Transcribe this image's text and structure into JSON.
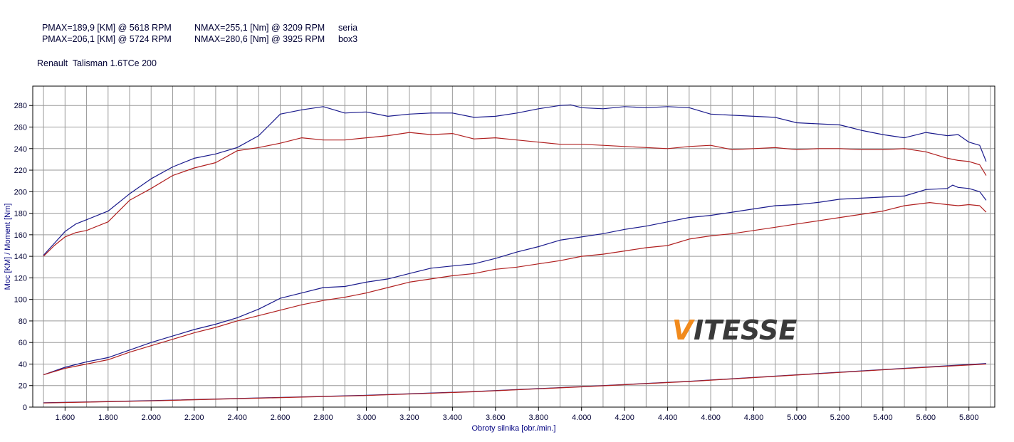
{
  "header": {
    "lines": [
      {
        "pmax": "PMAX=189,9 [KM] @ 5618 RPM",
        "nmax": "NMAX=255,1 [Nm] @ 3209 RPM",
        "label": "seria"
      },
      {
        "pmax": "PMAX=206,1 [KM] @ 5724 RPM",
        "nmax": "NMAX=280,6 [Nm] @ 3925 RPM",
        "label": "box3"
      }
    ],
    "vehicle": "Renault  Talisman 1.6TCe 200"
  },
  "logo": {
    "first": "V",
    "rest": "ITESSE"
  },
  "chart_data": {
    "type": "line",
    "title": "",
    "xlabel": "Obroty silnika [obr./min.]",
    "ylabel": "Moc [KM] / Moment [Nm]",
    "xlim": [
      1450,
      5920
    ],
    "ylim": [
      0,
      298
    ],
    "x_ticks": [
      1600,
      1800,
      2000,
      2200,
      2400,
      2600,
      2800,
      3000,
      3200,
      3400,
      3600,
      3800,
      4000,
      4200,
      4400,
      4600,
      4800,
      5000,
      5200,
      5400,
      5600,
      5800
    ],
    "x_tick_labels": [
      "1.600",
      "1.800",
      "2.000",
      "2.200",
      "2.400",
      "2.600",
      "2.800",
      "3.000",
      "3.200",
      "3.400",
      "3.600",
      "3.800",
      "4.000",
      "4.200",
      "4.400",
      "4.600",
      "4.800",
      "5.000",
      "5.200",
      "5.400",
      "5.600",
      "5.800"
    ],
    "y_ticks": [
      0,
      20,
      40,
      60,
      80,
      100,
      120,
      140,
      160,
      180,
      200,
      220,
      240,
      260,
      280
    ],
    "grid": true,
    "colors": {
      "box3": "#1a1a8c",
      "seria": "#b02020",
      "loss": "#7a2a8a"
    },
    "series": [
      {
        "name": "box3",
        "kind": "torque",
        "color": "#1a1a8c",
        "x": [
          1500,
          1550,
          1600,
          1650,
          1700,
          1800,
          1900,
          2000,
          2100,
          2200,
          2300,
          2400,
          2500,
          2550,
          2600,
          2700,
          2800,
          2900,
          3000,
          3100,
          3200,
          3300,
          3400,
          3500,
          3600,
          3700,
          3800,
          3900,
          3950,
          4000,
          4100,
          4200,
          4300,
          4400,
          4500,
          4600,
          4700,
          4800,
          4900,
          5000,
          5100,
          5200,
          5300,
          5400,
          5500,
          5600,
          5700,
          5750,
          5800,
          5850,
          5880
        ],
        "y": [
          141,
          152,
          163,
          170,
          174,
          182,
          198,
          212,
          223,
          231,
          235,
          241,
          252,
          262,
          272,
          276,
          279,
          273,
          274,
          270,
          272,
          273,
          273,
          269,
          270,
          273,
          277,
          280,
          280.6,
          278,
          277,
          279,
          278,
          279,
          278,
          272,
          271,
          270,
          269,
          264,
          263,
          262,
          257,
          253,
          250,
          255,
          252,
          253,
          246,
          243,
          228
        ]
      },
      {
        "name": "seria",
        "kind": "torque",
        "color": "#b02020",
        "x": [
          1500,
          1550,
          1600,
          1650,
          1700,
          1800,
          1900,
          2000,
          2100,
          2200,
          2300,
          2400,
          2500,
          2600,
          2700,
          2800,
          2900,
          3000,
          3100,
          3200,
          3300,
          3400,
          3500,
          3600,
          3700,
          3800,
          3900,
          4000,
          4100,
          4200,
          4300,
          4400,
          4500,
          4600,
          4700,
          4800,
          4900,
          5000,
          5100,
          5200,
          5300,
          5400,
          5500,
          5600,
          5700,
          5750,
          5800,
          5850,
          5880
        ],
        "y": [
          140,
          150,
          158,
          162,
          164,
          172,
          192,
          203,
          215,
          222,
          227,
          238,
          241,
          245,
          250,
          248,
          248,
          250,
          252,
          255,
          253,
          254,
          249,
          250,
          248,
          246,
          244,
          244,
          243,
          242,
          241,
          240,
          242,
          243,
          239,
          240,
          241,
          239,
          240,
          240,
          239,
          239,
          240,
          237,
          231,
          229,
          228,
          225,
          215
        ]
      },
      {
        "name": "box3",
        "kind": "power",
        "color": "#1a1a8c",
        "x": [
          1500,
          1600,
          1700,
          1800,
          1900,
          2000,
          2100,
          2200,
          2300,
          2400,
          2500,
          2600,
          2700,
          2800,
          2900,
          3000,
          3100,
          3200,
          3300,
          3400,
          3500,
          3600,
          3700,
          3800,
          3900,
          4000,
          4100,
          4200,
          4300,
          4400,
          4500,
          4600,
          4700,
          4800,
          4900,
          5000,
          5100,
          5200,
          5300,
          5400,
          5500,
          5600,
          5700,
          5724,
          5750,
          5800,
          5850,
          5880
        ],
        "y": [
          30,
          37,
          42,
          46,
          53,
          60,
          66,
          72,
          77,
          83,
          91,
          101,
          106,
          111,
          112,
          116,
          119,
          124,
          129,
          131,
          133,
          138,
          144,
          149,
          155,
          158,
          161,
          165,
          168,
          172,
          176,
          178,
          181,
          184,
          187,
          188,
          190,
          193,
          194,
          195,
          196,
          202,
          203,
          206.1,
          204,
          203,
          200,
          192
        ]
      },
      {
        "name": "seria",
        "kind": "power",
        "color": "#b02020",
        "x": [
          1500,
          1600,
          1700,
          1800,
          1900,
          2000,
          2100,
          2200,
          2300,
          2400,
          2500,
          2600,
          2700,
          2800,
          2900,
          3000,
          3100,
          3200,
          3300,
          3400,
          3500,
          3600,
          3700,
          3800,
          3900,
          4000,
          4100,
          4200,
          4300,
          4400,
          4500,
          4600,
          4700,
          4800,
          4900,
          5000,
          5100,
          5200,
          5300,
          5400,
          5500,
          5618,
          5700,
          5750,
          5800,
          5850,
          5880
        ],
        "y": [
          30,
          36,
          40,
          44,
          51,
          57,
          63,
          69,
          74,
          80,
          85,
          90,
          95,
          99,
          102,
          106,
          111,
          116,
          119,
          122,
          124,
          128,
          130,
          133,
          136,
          140,
          142,
          145,
          148,
          150,
          156,
          159,
          161,
          164,
          167,
          170,
          173,
          176,
          179,
          182,
          187,
          189.9,
          188,
          187,
          188,
          187,
          181
        ]
      },
      {
        "name": "box3",
        "kind": "loss",
        "color": "#1a1a8c",
        "x": [
          1500,
          2000,
          2500,
          3000,
          3500,
          4000,
          4500,
          5000,
          5500,
          5880
        ],
        "y": [
          4,
          6,
          8.5,
          11,
          14.5,
          19,
          24,
          30,
          36,
          40.5
        ]
      },
      {
        "name": "seria",
        "kind": "loss",
        "color": "#b02020",
        "x": [
          1500,
          2000,
          2500,
          3000,
          3500,
          4000,
          4500,
          5000,
          5500,
          5880
        ],
        "y": [
          3.8,
          5.8,
          8.3,
          10.8,
          14.3,
          18.8,
          23.8,
          29.8,
          35.8,
          40
        ]
      }
    ]
  }
}
